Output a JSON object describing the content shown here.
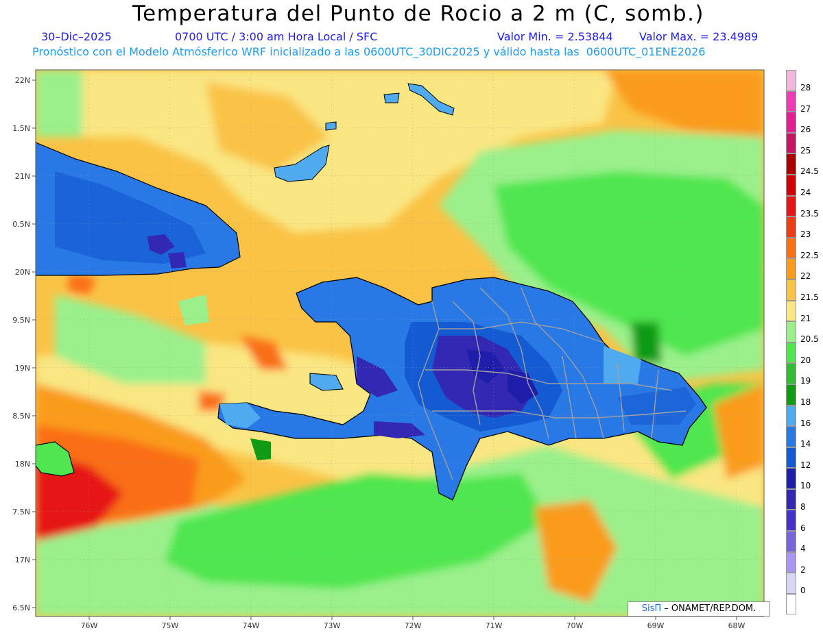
{
  "title": "Temperatura del Punto de Rocio a 2 m (C, somb.)",
  "date": "30–Dic–2025",
  "time_info": "0700 UTC / 3:00 am Hora Local / SFC",
  "valor_min": "Valor Min. = 2.53844",
  "valor_max": "Valor Max. = 23.4989",
  "forecast_info": "Pronóstico con el Modelo Atmósferico WRF inicializado a las 0600UTC_30DIC2025 y válido hasta las  0600UTC_01ENE2026",
  "credit": {
    "brand": "SisΠ",
    "rest": " – ONAMET/REP.DOM."
  },
  "lat_labels": [
    "22N",
    "1.5N",
    "21N",
    "0.5N",
    "20N",
    "9.5N",
    "19N",
    "8.5N",
    "18N",
    "7.5N",
    "17N",
    "6.5N"
  ],
  "lon_labels": [
    "76W",
    "75W",
    "74W",
    "73W",
    "72W",
    "71W",
    "70W",
    "69W",
    "68W"
  ],
  "legend": [
    {
      "label": "28",
      "color": "#f5b6dc"
    },
    {
      "label": "27",
      "color": "#f03cb4"
    },
    {
      "label": "26",
      "color": "#e61e96"
    },
    {
      "label": "25",
      "color": "#c81464"
    },
    {
      "label": "24.5",
      "color": "#aa0000"
    },
    {
      "label": "24",
      "color": "#d20000"
    },
    {
      "label": "23.5",
      "color": "#e61414"
    },
    {
      "label": "23",
      "color": "#f03c14"
    },
    {
      "label": "22.5",
      "color": "#fa6e14"
    },
    {
      "label": "22",
      "color": "#fa9b1e"
    },
    {
      "label": "21.5",
      "color": "#fac346"
    },
    {
      "label": "21",
      "color": "#fae682"
    },
    {
      "label": "20.5",
      "color": "#9bf08c"
    },
    {
      "label": "20",
      "color": "#50e650"
    },
    {
      "label": "19",
      "color": "#32be32"
    },
    {
      "label": "18",
      "color": "#0f9b14"
    },
    {
      "label": "16",
      "color": "#50aaf0"
    },
    {
      "label": "14",
      "color": "#2878e6"
    },
    {
      "label": "12",
      "color": "#145ad2"
    },
    {
      "label": "10",
      "color": "#1e1eaa"
    },
    {
      "label": "8",
      "color": "#3228b4"
    },
    {
      "label": "6",
      "color": "#4632c8"
    },
    {
      "label": "4",
      "color": "#7864dc"
    },
    {
      "label": "2",
      "color": "#aa96f0"
    },
    {
      "label": "0",
      "color": "#d7d7f5"
    },
    {
      "label": "",
      "color": "#ffffff"
    }
  ]
}
